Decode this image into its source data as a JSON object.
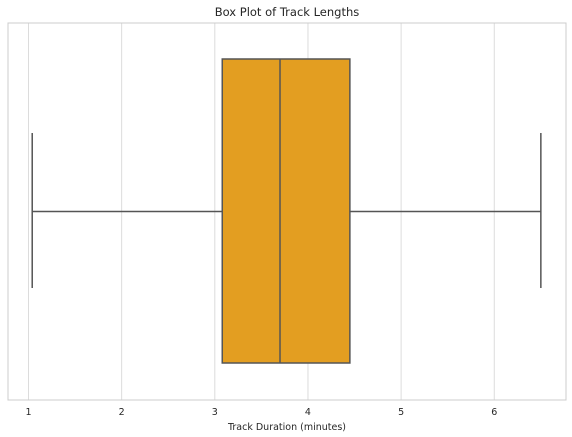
{
  "chart_data": {
    "type": "box",
    "title": "Box Plot of Track Lengths",
    "xlabel": "Track Duration (minutes)",
    "ylabel": "",
    "xlim": [
      0.78,
      6.77
    ],
    "xticks": [
      1,
      2,
      3,
      4,
      5,
      6
    ],
    "grid": "vertical",
    "box": {
      "whisker_low": 1.04,
      "q1": 3.08,
      "median": 3.7,
      "q3": 4.45,
      "whisker_high": 6.5
    },
    "colors": {
      "box_fill": "#e39e21",
      "line": "#555555",
      "grid": "#dcdcdc",
      "frame": "#cccccc"
    }
  }
}
